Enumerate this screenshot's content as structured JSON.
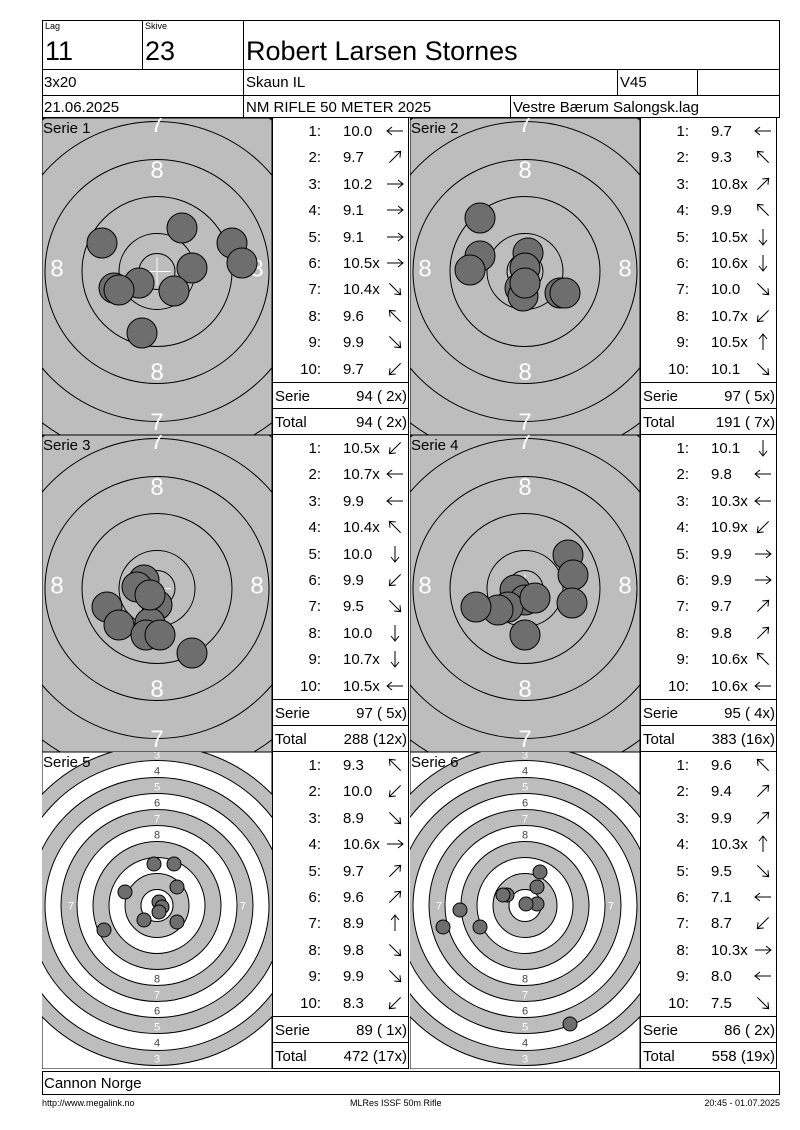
{
  "header": {
    "lag_label": "Lag",
    "lag": "11",
    "skive_label": "Skive",
    "skive": "23",
    "name": "Robert Larsen Stornes",
    "program": "3x20",
    "club": "Skaun IL",
    "class": "V45",
    "date": "21.06.2025",
    "event": "NM RIFLE 50 METER 2025",
    "host": "Vestre Bærum Salongsk.lag"
  },
  "labels": {
    "serie": "Serie",
    "total": "Total"
  },
  "series": [
    {
      "title": "Serie 1",
      "serie_sum": "94 ( 2x)",
      "total_sum": "94 ( 2x)",
      "shots": [
        {
          "n": "1:",
          "v": "10.0",
          "dir": "left"
        },
        {
          "n": "2:",
          "v": "9.7",
          "dir": "up-right"
        },
        {
          "n": "3:",
          "v": "10.2",
          "dir": "right"
        },
        {
          "n": "4:",
          "v": "9.1",
          "dir": "right"
        },
        {
          "n": "5:",
          "v": "9.1",
          "dir": "right"
        },
        {
          "n": "6:",
          "v": "10.5x",
          "dir": "right"
        },
        {
          "n": "7:",
          "v": "10.4x",
          "dir": "down-right"
        },
        {
          "n": "8:",
          "v": "9.6",
          "dir": "up-left"
        },
        {
          "n": "9:",
          "v": "9.9",
          "dir": "down-right"
        },
        {
          "n": "10:",
          "v": "9.7",
          "dir": "down-left"
        }
      ]
    },
    {
      "title": "Serie 2",
      "serie_sum": "97 ( 5x)",
      "total_sum": "191 ( 7x)",
      "shots": [
        {
          "n": "1:",
          "v": "9.7",
          "dir": "left"
        },
        {
          "n": "2:",
          "v": "9.3",
          "dir": "up-left"
        },
        {
          "n": "3:",
          "v": "10.8x",
          "dir": "up-right"
        },
        {
          "n": "4:",
          "v": "9.9",
          "dir": "up-left"
        },
        {
          "n": "5:",
          "v": "10.5x",
          "dir": "down"
        },
        {
          "n": "6:",
          "v": "10.6x",
          "dir": "down"
        },
        {
          "n": "7:",
          "v": "10.0",
          "dir": "down-right"
        },
        {
          "n": "8:",
          "v": "10.7x",
          "dir": "down-left"
        },
        {
          "n": "9:",
          "v": "10.5x",
          "dir": "up"
        },
        {
          "n": "10:",
          "v": "10.1",
          "dir": "down-right"
        }
      ]
    },
    {
      "title": "Serie 3",
      "serie_sum": "97 ( 5x)",
      "total_sum": "288 (12x)",
      "shots": [
        {
          "n": "1:",
          "v": "10.5x",
          "dir": "down-left"
        },
        {
          "n": "2:",
          "v": "10.7x",
          "dir": "left"
        },
        {
          "n": "3:",
          "v": "9.9",
          "dir": "left"
        },
        {
          "n": "4:",
          "v": "10.4x",
          "dir": "up-left"
        },
        {
          "n": "5:",
          "v": "10.0",
          "dir": "down"
        },
        {
          "n": "6:",
          "v": "9.9",
          "dir": "down-left"
        },
        {
          "n": "7:",
          "v": "9.5",
          "dir": "down-right"
        },
        {
          "n": "8:",
          "v": "10.0",
          "dir": "down"
        },
        {
          "n": "9:",
          "v": "10.7x",
          "dir": "down"
        },
        {
          "n": "10:",
          "v": "10.5x",
          "dir": "left"
        }
      ]
    },
    {
      "title": "Serie 4",
      "serie_sum": "95 ( 4x)",
      "total_sum": "383 (16x)",
      "shots": [
        {
          "n": "1:",
          "v": "10.1",
          "dir": "down"
        },
        {
          "n": "2:",
          "v": "9.8",
          "dir": "left"
        },
        {
          "n": "3:",
          "v": "10.3x",
          "dir": "left"
        },
        {
          "n": "4:",
          "v": "10.9x",
          "dir": "down-left"
        },
        {
          "n": "5:",
          "v": "9.9",
          "dir": "right"
        },
        {
          "n": "6:",
          "v": "9.9",
          "dir": "right"
        },
        {
          "n": "7:",
          "v": "9.7",
          "dir": "up-right"
        },
        {
          "n": "8:",
          "v": "9.8",
          "dir": "up-right"
        },
        {
          "n": "9:",
          "v": "10.6x",
          "dir": "up-left"
        },
        {
          "n": "10:",
          "v": "10.6x",
          "dir": "left"
        }
      ]
    },
    {
      "title": "Serie 5",
      "serie_sum": "89 ( 1x)",
      "total_sum": "472 (17x)",
      "shots": [
        {
          "n": "1:",
          "v": "9.3",
          "dir": "up-left"
        },
        {
          "n": "2:",
          "v": "10.0",
          "dir": "down-left"
        },
        {
          "n": "3:",
          "v": "8.9",
          "dir": "down-right"
        },
        {
          "n": "4:",
          "v": "10.6x",
          "dir": "right"
        },
        {
          "n": "5:",
          "v": "9.7",
          "dir": "up-right"
        },
        {
          "n": "6:",
          "v": "9.6",
          "dir": "up-right"
        },
        {
          "n": "7:",
          "v": "8.9",
          "dir": "up"
        },
        {
          "n": "8:",
          "v": "9.8",
          "dir": "down-right"
        },
        {
          "n": "9:",
          "v": "9.9",
          "dir": "down-right"
        },
        {
          "n": "10:",
          "v": "8.3",
          "dir": "down-left"
        }
      ]
    },
    {
      "title": "Serie 6",
      "serie_sum": "86 ( 2x)",
      "total_sum": "558 (19x)",
      "shots": [
        {
          "n": "1:",
          "v": "9.6",
          "dir": "up-left"
        },
        {
          "n": "2:",
          "v": "9.4",
          "dir": "up-right"
        },
        {
          "n": "3:",
          "v": "9.9",
          "dir": "up-right"
        },
        {
          "n": "4:",
          "v": "10.3x",
          "dir": "up"
        },
        {
          "n": "5:",
          "v": "9.5",
          "dir": "down-right"
        },
        {
          "n": "6:",
          "v": "7.1",
          "dir": "left"
        },
        {
          "n": "7:",
          "v": "8.7",
          "dir": "down-left"
        },
        {
          "n": "8:",
          "v": "10.3x",
          "dir": "right"
        },
        {
          "n": "9:",
          "v": "8.0",
          "dir": "left"
        },
        {
          "n": "10:",
          "v": "7.5",
          "dir": "down-right"
        }
      ]
    }
  ],
  "ring_labels_black": [
    "7",
    "8",
    "8",
    "8",
    "8",
    "7"
  ],
  "ring_labels_white": [
    "3",
    "4",
    "5",
    "6",
    "7",
    "8"
  ],
  "footer": {
    "sponsor": "Cannon Norge",
    "url": "http://www.megalink.no",
    "program": "MLRes ISSF 50m Rifle",
    "timestamp": "20:45 - 01.07.2025"
  }
}
